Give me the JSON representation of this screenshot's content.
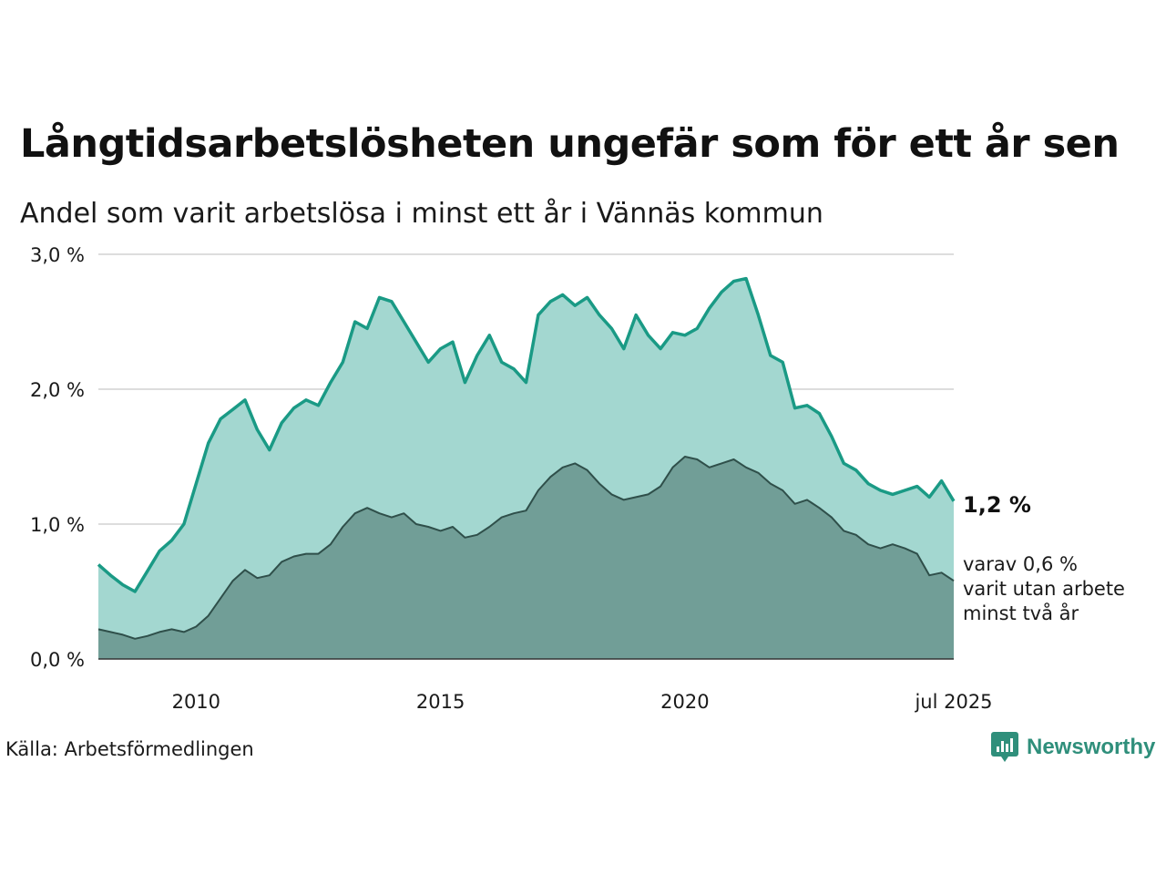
{
  "title": "Långtidsarbetslösheten ungefär som för ett år sen",
  "subtitle": "Andel som varit arbetslösa i minst ett år i Vännäs kommun",
  "source": "Källa: Arbetsförmedlingen",
  "logo_text": "Newsworthy",
  "end_label": "1,2 %",
  "sub_label_lines": [
    "varav 0,6 %",
    "varit utan arbete",
    "minst två år"
  ],
  "colors": {
    "one_year_line": "#1a9a85",
    "one_year_fill": "#a3d7d0",
    "two_year_line": "#2f4f4a",
    "two_year_fill": "#719e97",
    "grid": "#dddddd",
    "logo": "#2f8f7b"
  },
  "chart_data": {
    "type": "area",
    "title": "Långtidsarbetslösheten ungefär som för ett år sen",
    "subtitle": "Andel som varit arbetslösa i minst ett år i Vännäs kommun",
    "xlabel": "",
    "ylabel": "",
    "ylim": [
      0,
      3
    ],
    "xlim": [
      "2008-01",
      "2025-07"
    ],
    "grid": true,
    "y_ticks": [
      {
        "value": 0,
        "label": "0,0 %"
      },
      {
        "value": 1,
        "label": "1,0 %"
      },
      {
        "value": 2,
        "label": "2,0 %"
      },
      {
        "value": 3,
        "label": "3,0 %"
      }
    ],
    "x_ticks": [
      {
        "value": "2010-01",
        "label": "2010"
      },
      {
        "value": "2015-01",
        "label": "2015"
      },
      {
        "value": "2020-01",
        "label": "2020"
      },
      {
        "value": "2025-07",
        "label": "jul 2025"
      }
    ],
    "series": [
      {
        "key": "one_year",
        "points": [
          [
            "2008-01",
            0.7
          ],
          [
            "2008-04",
            0.62
          ],
          [
            "2008-07",
            0.55
          ],
          [
            "2008-10",
            0.5
          ],
          [
            "2009-01",
            0.65
          ],
          [
            "2009-04",
            0.8
          ],
          [
            "2009-07",
            0.88
          ],
          [
            "2009-10",
            1.0
          ],
          [
            "2010-01",
            1.3
          ],
          [
            "2010-04",
            1.6
          ],
          [
            "2010-07",
            1.78
          ],
          [
            "2010-10",
            1.85
          ],
          [
            "2011-01",
            1.92
          ],
          [
            "2011-04",
            1.7
          ],
          [
            "2011-07",
            1.55
          ],
          [
            "2011-10",
            1.75
          ],
          [
            "2012-01",
            1.86
          ],
          [
            "2012-04",
            1.92
          ],
          [
            "2012-07",
            1.88
          ],
          [
            "2012-10",
            2.05
          ],
          [
            "2013-01",
            2.2
          ],
          [
            "2013-04",
            2.5
          ],
          [
            "2013-07",
            2.45
          ],
          [
            "2013-10",
            2.68
          ],
          [
            "2014-01",
            2.65
          ],
          [
            "2014-04",
            2.5
          ],
          [
            "2014-07",
            2.35
          ],
          [
            "2014-10",
            2.2
          ],
          [
            "2015-01",
            2.3
          ],
          [
            "2015-04",
            2.35
          ],
          [
            "2015-07",
            2.05
          ],
          [
            "2015-10",
            2.25
          ],
          [
            "2016-01",
            2.4
          ],
          [
            "2016-04",
            2.2
          ],
          [
            "2016-07",
            2.15
          ],
          [
            "2016-10",
            2.05
          ],
          [
            "2017-01",
            2.55
          ],
          [
            "2017-04",
            2.65
          ],
          [
            "2017-07",
            2.7
          ],
          [
            "2017-10",
            2.62
          ],
          [
            "2018-01",
            2.68
          ],
          [
            "2018-04",
            2.55
          ],
          [
            "2018-07",
            2.45
          ],
          [
            "2018-10",
            2.3
          ],
          [
            "2019-01",
            2.55
          ],
          [
            "2019-04",
            2.4
          ],
          [
            "2019-07",
            2.3
          ],
          [
            "2019-10",
            2.42
          ],
          [
            "2020-01",
            2.4
          ],
          [
            "2020-04",
            2.45
          ],
          [
            "2020-07",
            2.6
          ],
          [
            "2020-10",
            2.72
          ],
          [
            "2021-01",
            2.8
          ],
          [
            "2021-04",
            2.82
          ],
          [
            "2021-07",
            2.55
          ],
          [
            "2021-10",
            2.25
          ],
          [
            "2022-01",
            2.2
          ],
          [
            "2022-04",
            1.86
          ],
          [
            "2022-07",
            1.88
          ],
          [
            "2022-10",
            1.82
          ],
          [
            "2023-01",
            1.65
          ],
          [
            "2023-04",
            1.45
          ],
          [
            "2023-07",
            1.4
          ],
          [
            "2023-10",
            1.3
          ],
          [
            "2024-01",
            1.25
          ],
          [
            "2024-04",
            1.22
          ],
          [
            "2024-07",
            1.25
          ],
          [
            "2024-10",
            1.28
          ],
          [
            "2025-01",
            1.2
          ],
          [
            "2025-04",
            1.32
          ],
          [
            "2025-07",
            1.17
          ]
        ]
      },
      {
        "key": "two_year",
        "points": [
          [
            "2008-01",
            0.22
          ],
          [
            "2008-04",
            0.2
          ],
          [
            "2008-07",
            0.18
          ],
          [
            "2008-10",
            0.15
          ],
          [
            "2009-01",
            0.17
          ],
          [
            "2009-04",
            0.2
          ],
          [
            "2009-07",
            0.22
          ],
          [
            "2009-10",
            0.2
          ],
          [
            "2010-01",
            0.24
          ],
          [
            "2010-04",
            0.32
          ],
          [
            "2010-07",
            0.45
          ],
          [
            "2010-10",
            0.58
          ],
          [
            "2011-01",
            0.66
          ],
          [
            "2011-04",
            0.6
          ],
          [
            "2011-07",
            0.62
          ],
          [
            "2011-10",
            0.72
          ],
          [
            "2012-01",
            0.76
          ],
          [
            "2012-04",
            0.78
          ],
          [
            "2012-07",
            0.78
          ],
          [
            "2012-10",
            0.85
          ],
          [
            "2013-01",
            0.98
          ],
          [
            "2013-04",
            1.08
          ],
          [
            "2013-07",
            1.12
          ],
          [
            "2013-10",
            1.08
          ],
          [
            "2014-01",
            1.05
          ],
          [
            "2014-04",
            1.08
          ],
          [
            "2014-07",
            1.0
          ],
          [
            "2014-10",
            0.98
          ],
          [
            "2015-01",
            0.95
          ],
          [
            "2015-04",
            0.98
          ],
          [
            "2015-07",
            0.9
          ],
          [
            "2015-10",
            0.92
          ],
          [
            "2016-01",
            0.98
          ],
          [
            "2016-04",
            1.05
          ],
          [
            "2016-07",
            1.08
          ],
          [
            "2016-10",
            1.1
          ],
          [
            "2017-01",
            1.25
          ],
          [
            "2017-04",
            1.35
          ],
          [
            "2017-07",
            1.42
          ],
          [
            "2017-10",
            1.45
          ],
          [
            "2018-01",
            1.4
          ],
          [
            "2018-04",
            1.3
          ],
          [
            "2018-07",
            1.22
          ],
          [
            "2018-10",
            1.18
          ],
          [
            "2019-01",
            1.2
          ],
          [
            "2019-04",
            1.22
          ],
          [
            "2019-07",
            1.28
          ],
          [
            "2019-10",
            1.42
          ],
          [
            "2020-01",
            1.5
          ],
          [
            "2020-04",
            1.48
          ],
          [
            "2020-07",
            1.42
          ],
          [
            "2020-10",
            1.45
          ],
          [
            "2021-01",
            1.48
          ],
          [
            "2021-04",
            1.42
          ],
          [
            "2021-07",
            1.38
          ],
          [
            "2021-10",
            1.3
          ],
          [
            "2022-01",
            1.25
          ],
          [
            "2022-04",
            1.15
          ],
          [
            "2022-07",
            1.18
          ],
          [
            "2022-10",
            1.12
          ],
          [
            "2023-01",
            1.05
          ],
          [
            "2023-04",
            0.95
          ],
          [
            "2023-07",
            0.92
          ],
          [
            "2023-10",
            0.85
          ],
          [
            "2024-01",
            0.82
          ],
          [
            "2024-04",
            0.85
          ],
          [
            "2024-07",
            0.82
          ],
          [
            "2024-10",
            0.78
          ],
          [
            "2025-01",
            0.62
          ],
          [
            "2025-04",
            0.64
          ],
          [
            "2025-07",
            0.58
          ]
        ]
      }
    ]
  }
}
